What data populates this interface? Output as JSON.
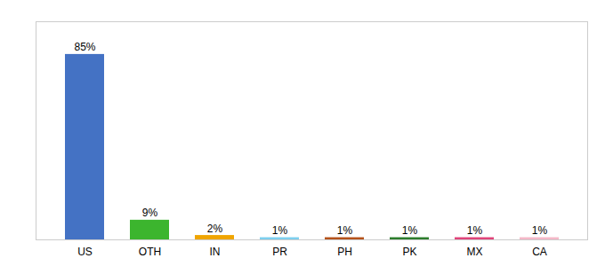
{
  "chart_data": {
    "type": "bar",
    "categories": [
      "US",
      "OTH",
      "IN",
      "PR",
      "PH",
      "PK",
      "MX",
      "CA"
    ],
    "values": [
      85,
      9,
      2,
      1,
      1,
      1,
      1,
      1
    ],
    "value_labels": [
      "85%",
      "9%",
      "2%",
      "1%",
      "1%",
      "1%",
      "1%",
      "1%"
    ],
    "colors": [
      "#4472c4",
      "#3cb52e",
      "#f0a500",
      "#7ecfee",
      "#b5521b",
      "#2d7d2d",
      "#e0447a",
      "#f4b8c8"
    ],
    "ylim": [
      0,
      100
    ],
    "data_labels": true,
    "tick_labels": "x",
    "grid": false
  }
}
